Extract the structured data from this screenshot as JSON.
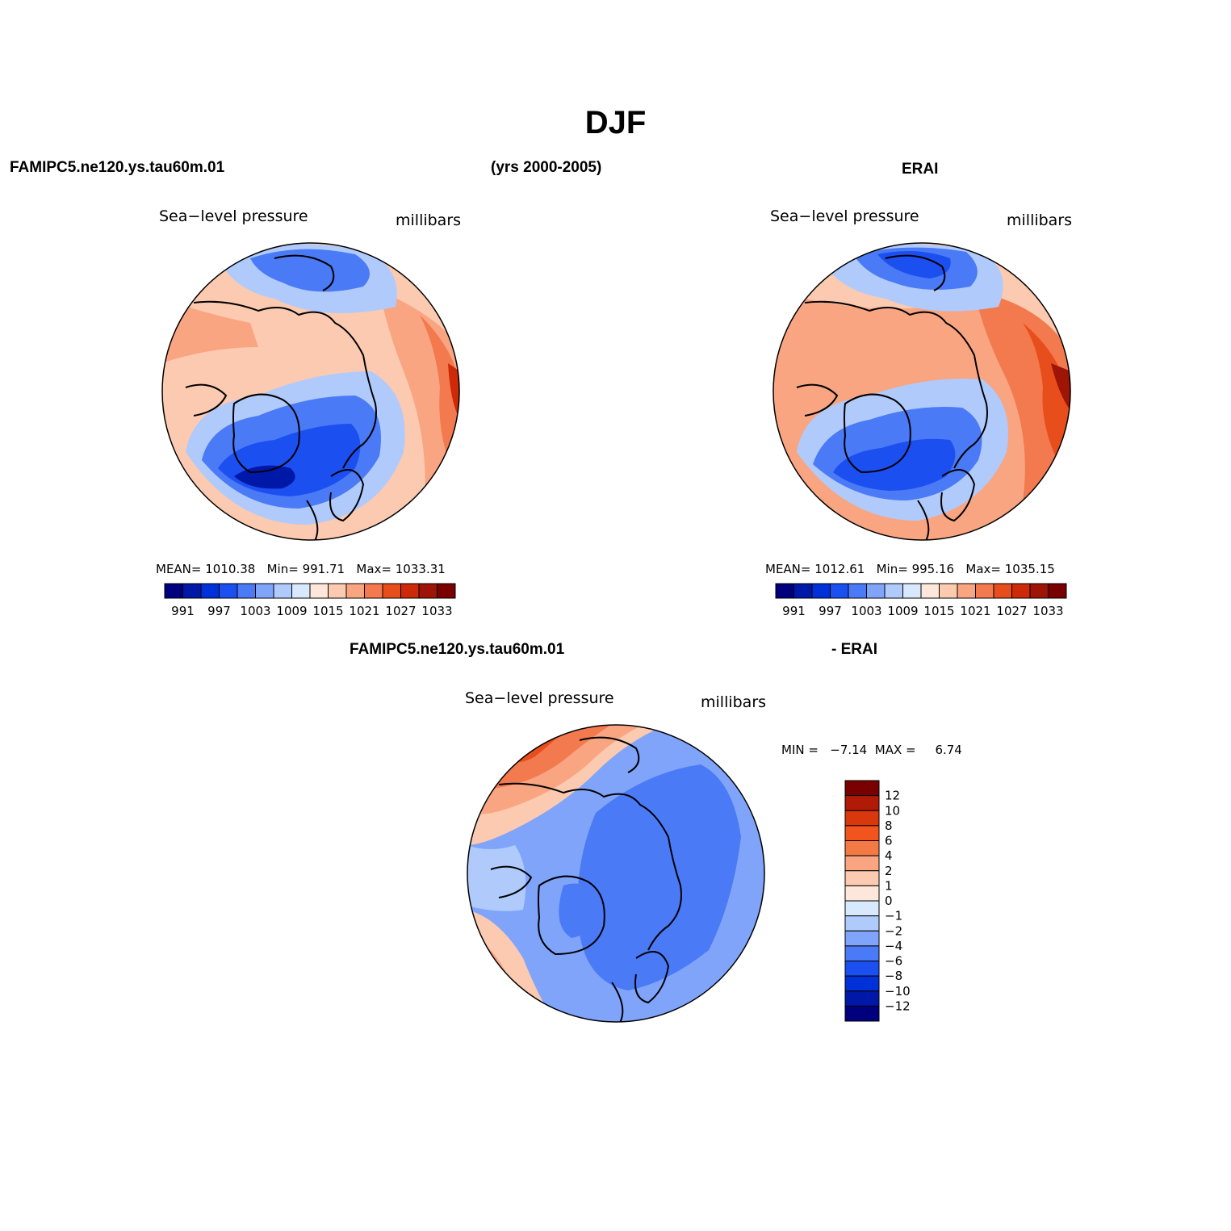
{
  "page_title": "DJF",
  "top_left_header": "FAMIPC5.ne120.ys.tau60m.01",
  "years": "(yrs 2000-2005)",
  "top_right_header": "ERAI",
  "bottom_header_left": "FAMIPC5.ne120.ys.tau60m.01",
  "bottom_header_right": "- ERAI",
  "panels": {
    "model": {
      "variable": "Sea−level pressure",
      "units": "millibars",
      "mean_label": "MEAN=",
      "mean": "1010.38",
      "min_label": "Min=",
      "min": "991.71",
      "max_label": "Max=",
      "max": "1033.31"
    },
    "obs": {
      "variable": "Sea−level pressure",
      "units": "millibars",
      "mean_label": "MEAN=",
      "mean": "1012.61",
      "min_label": "Min=",
      "min": "995.16",
      "max_label": "Max=",
      "max": "1035.15"
    },
    "diff": {
      "variable": "Sea−level pressure",
      "units": "millibars",
      "min_label": "MIN =",
      "min": "−7.14",
      "max_label": "MAX =",
      "max": "6.74"
    }
  },
  "abs_colorbar": {
    "colors": [
      "#00007f",
      "#0018a8",
      "#0030d8",
      "#1c4ff0",
      "#4a7af5",
      "#7fa4fa",
      "#b0cafc",
      "#d8e8fd",
      "#fde7da",
      "#fccab0",
      "#f9a582",
      "#f3794f",
      "#e84e1c",
      "#cc2a08",
      "#9e1406",
      "#7a0000"
    ],
    "labels": [
      "991",
      "997",
      "1003",
      "1009",
      "1015",
      "1021",
      "1027",
      "1033"
    ]
  },
  "diff_colorbar": {
    "colors": [
      "#7a0000",
      "#b01a07",
      "#d8380c",
      "#f2541d",
      "#f47a45",
      "#f9a582",
      "#fccab0",
      "#fde7da",
      "#d8e8fd",
      "#b0cafc",
      "#7fa4fa",
      "#4a7af5",
      "#1c4ff0",
      "#0030d8",
      "#0018a8",
      "#00007f"
    ],
    "labels": [
      "12",
      "10",
      "8",
      "6",
      "4",
      "2",
      "1",
      "0",
      "−1",
      "−2",
      "−4",
      "−6",
      "−8",
      "−10",
      "−12"
    ]
  },
  "field_colors": {
    "deep_low": "#0018a8",
    "low": "#1c4ff0",
    "mid_low": "#4a7af5",
    "light_low": "#b0cafc",
    "neutral": "#fde7da",
    "high": "#fccab0",
    "higher": "#f9a582",
    "strong_high": "#f3794f",
    "peak_high": "#cc2a08"
  }
}
